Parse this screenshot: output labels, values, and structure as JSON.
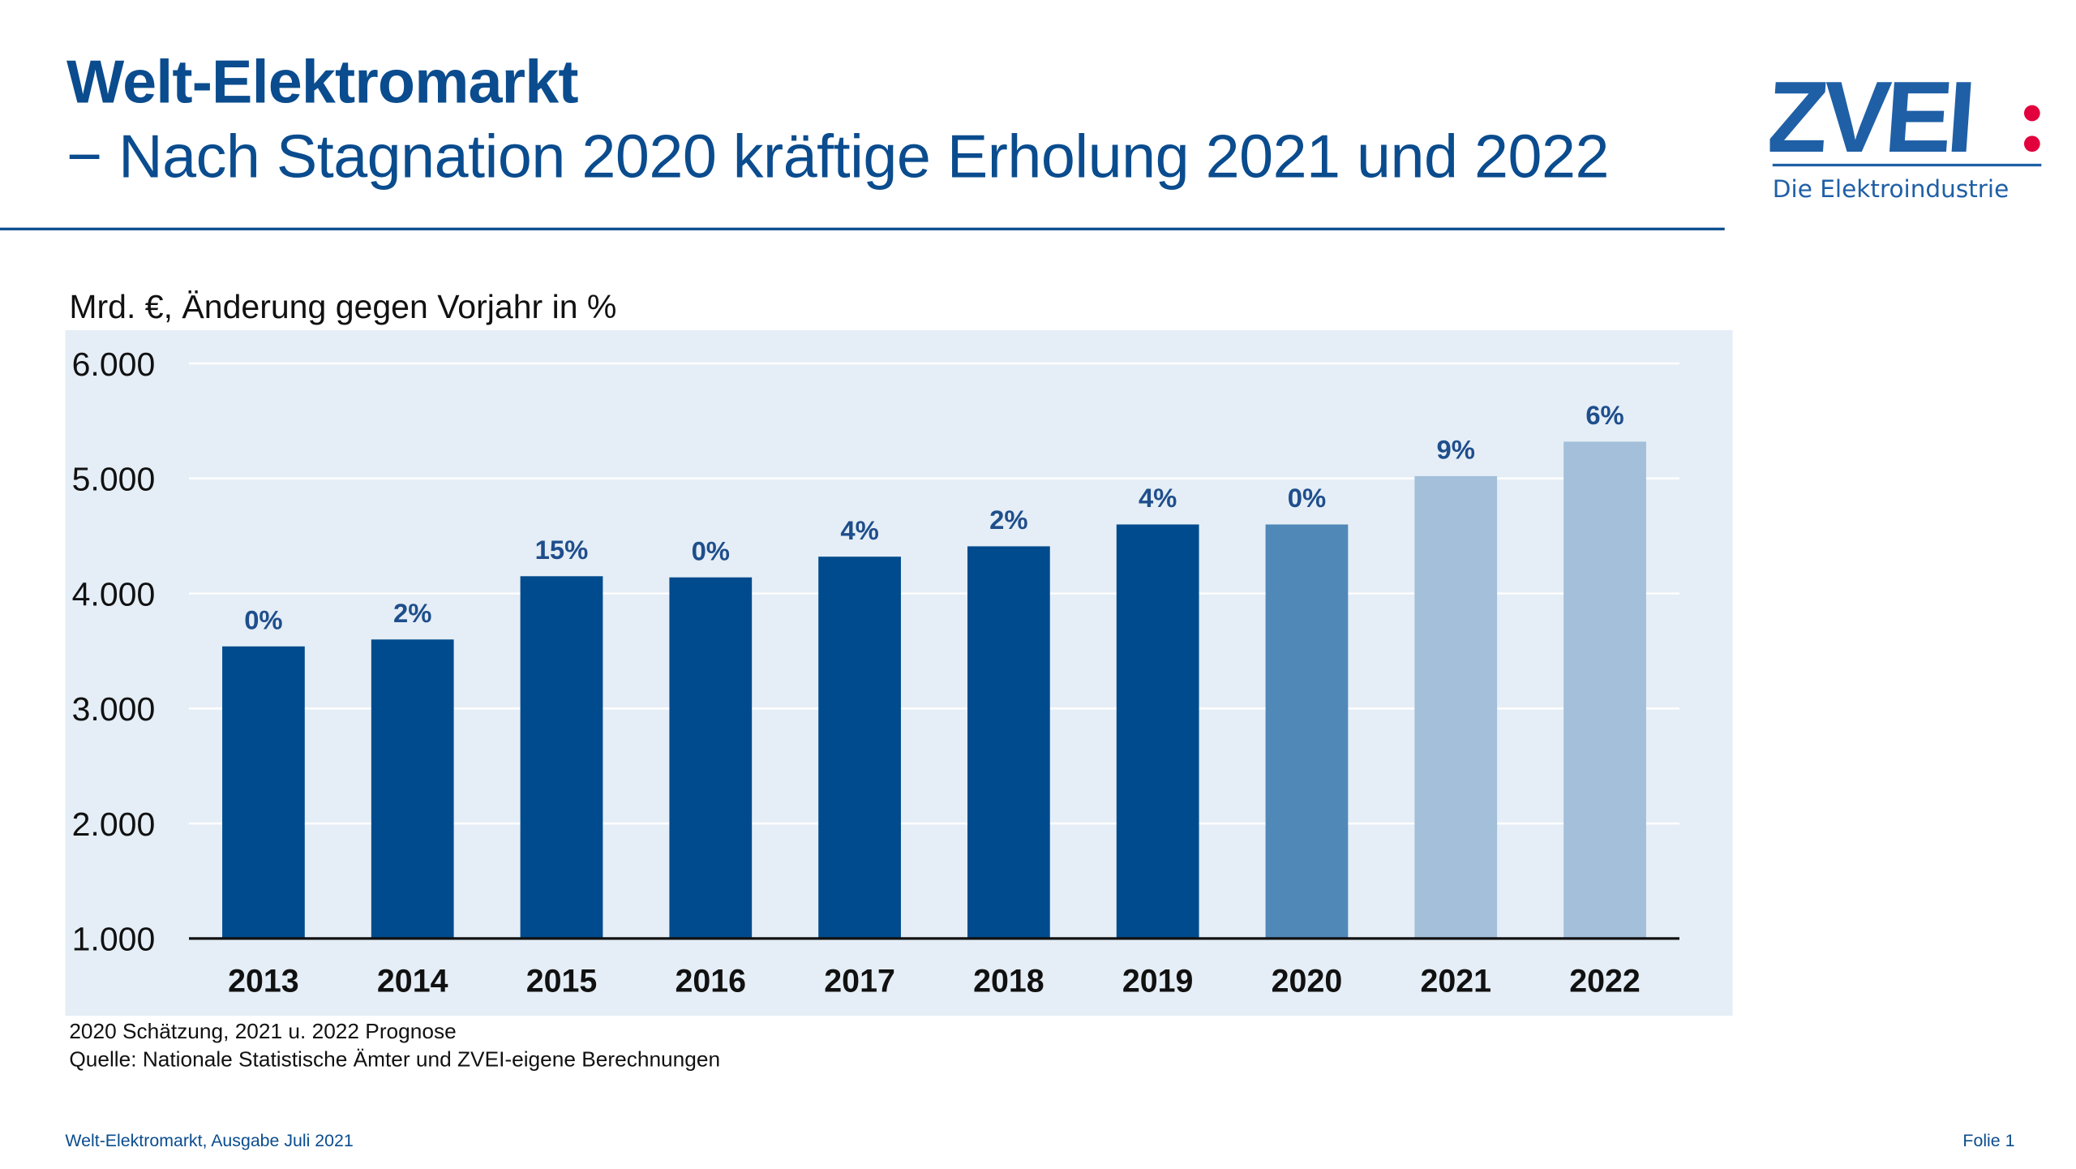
{
  "header": {
    "title": "Welt-Elektromarkt",
    "subtitle": "− Nach Stagnation 2020 kräftige Erholung 2021 und 2022",
    "logo_text": "ZVEI:",
    "logo_tagline": "Die Elektroindustrie"
  },
  "chart_data": {
    "type": "bar",
    "ylabel": "Mrd. €, Änderung gegen Vorjahr in %",
    "ylim": [
      1000,
      6000
    ],
    "yticks": [
      "1.000",
      "2.000",
      "3.000",
      "4.000",
      "5.000",
      "6.000"
    ],
    "ytick_values": [
      1000,
      2000,
      3000,
      4000,
      5000,
      6000
    ],
    "grid": true,
    "categories": [
      "2013",
      "2014",
      "2015",
      "2016",
      "2017",
      "2018",
      "2019",
      "2020",
      "2021",
      "2022"
    ],
    "values": [
      3540,
      3600,
      4150,
      4140,
      4320,
      4410,
      4600,
      4600,
      5020,
      5320
    ],
    "data_labels": [
      "0%",
      "2%",
      "15%",
      "0%",
      "4%",
      "2%",
      "4%",
      "0%",
      "9%",
      "6%"
    ],
    "colors": [
      "#004B8D",
      "#004B8D",
      "#004B8D",
      "#004B8D",
      "#004B8D",
      "#004B8D",
      "#004B8D",
      "#5088B8",
      "#A3BFD9",
      "#A3BFD9"
    ],
    "background": "#E5EEF6"
  },
  "notes": {
    "estimate": "2020 Schätzung, 2021 u. 2022 Prognose",
    "source": "Quelle: Nationale Statistische Ämter und ZVEI-eigene Berechnungen"
  },
  "footer": {
    "left": "Welt-Elektromarkt, Ausgabe Juli 2021",
    "right": "Folie 1"
  }
}
